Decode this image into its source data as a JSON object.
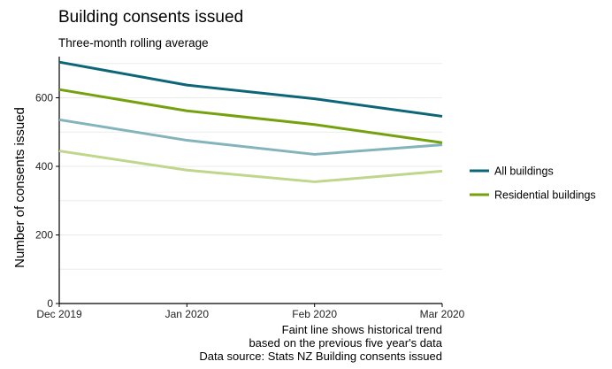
{
  "chart_data": {
    "type": "line",
    "title": "Building consents issued",
    "subtitle": "Three-month rolling average",
    "ylabel": "Number of consents issued",
    "xlabel": "",
    "categories": [
      "Dec 2019",
      "Jan 2020",
      "Feb 2020",
      "Mar 2020"
    ],
    "ylim": [
      0,
      720
    ],
    "yticks": [
      0,
      200,
      400,
      600
    ],
    "grid": true,
    "series": [
      {
        "name": "All buildings",
        "values": [
          704,
          637,
          597,
          546
        ],
        "color": "#0d6677",
        "faint": false,
        "in_legend": true
      },
      {
        "name": "Residential buildings",
        "values": [
          624,
          562,
          522,
          469
        ],
        "color": "#76a10f",
        "faint": false,
        "in_legend": true
      },
      {
        "values": [
          536,
          476,
          435,
          463
        ],
        "color": "#84b4bb",
        "faint": true,
        "in_legend": false
      },
      {
        "values": [
          445,
          389,
          355,
          386
        ],
        "color": "#bfd68b",
        "faint": true,
        "in_legend": false
      }
    ],
    "legend_position": "right",
    "caption": [
      "Faint line shows historical trend",
      "based on the previous five year's data",
      "Data source: Stats NZ Building consents issued"
    ]
  }
}
